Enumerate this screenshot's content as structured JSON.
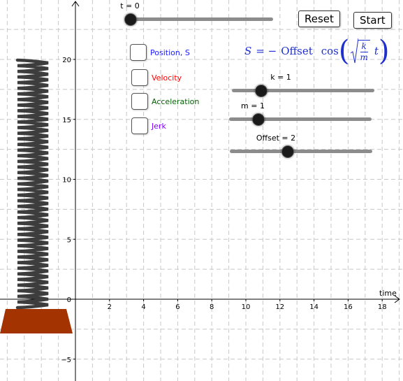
{
  "axes": {
    "x_label": "time",
    "x_ticks": [
      "2",
      "4",
      "6",
      "8",
      "10",
      "12",
      "14",
      "16",
      "18"
    ],
    "y_ticks": [
      "20",
      "15",
      "10",
      "5",
      "0",
      "−5"
    ]
  },
  "sliders": {
    "t": {
      "label": "t = 0",
      "value": 0,
      "min": 0,
      "max": 20
    },
    "k": {
      "label": "k = 1",
      "value": 1,
      "min": 0,
      "max": 5
    },
    "m": {
      "label": "m = 1",
      "value": 1,
      "min": 0,
      "max": 5
    },
    "offset": {
      "label": "Offset = 2",
      "value": 2,
      "min": 0,
      "max": 5
    }
  },
  "buttons": {
    "reset": "Reset",
    "start": "Start"
  },
  "checkboxes": [
    {
      "label": "Position, S",
      "color": "#1a1aff",
      "checked": false
    },
    {
      "label": "Velocity",
      "color": "#ff0000",
      "checked": false
    },
    {
      "label": "Acceleration",
      "color": "#006400",
      "checked": false
    },
    {
      "label": "Jerk",
      "color": "#7f00ff",
      "checked": false
    }
  ],
  "formula": {
    "lhs": "S",
    "eq": "= −",
    "offset": "Offset",
    "cos": "cos",
    "k": "k",
    "m": "m",
    "t": "t"
  },
  "colors": {
    "spring": "#3d3d3d",
    "base": "#a33300",
    "formula": "#1f2fcf",
    "grid": "#c8c8c8"
  }
}
